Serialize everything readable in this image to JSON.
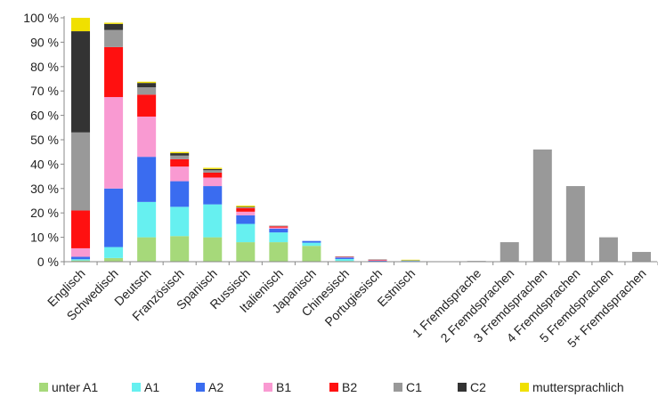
{
  "chart_data": {
    "type": "bar",
    "stacked": true,
    "ylim": [
      0,
      100
    ],
    "y_ticks": [
      "0 %",
      "10 %",
      "20 %",
      "30 %",
      "40 %",
      "50 %",
      "60 %",
      "70 %",
      "80 %",
      "90 %",
      "100 %"
    ],
    "y_tick_values": [
      0,
      10,
      20,
      30,
      40,
      50,
      60,
      70,
      80,
      90,
      100
    ],
    "grid": false,
    "legend_position": "bottom",
    "categories": [
      "Englisch",
      "Schwedisch",
      "Deutsch",
      "Französisch",
      "Spanisch",
      "Russisch",
      "Italienisch",
      "Japanisch",
      "Chinesisch",
      "Portugiesisch",
      "Estnisch",
      "",
      "1 Fremdsprache",
      "2 Fremdsprachen",
      "3 Fremdsprachen",
      "4 Fremdsprachen",
      "5 Fremdsprachen",
      "5+ Fremdsprachen"
    ],
    "series": [
      {
        "name": "unter A1",
        "color": "#a6d97a",
        "values": [
          0.5,
          1.5,
          10,
          10.5,
          10,
          8,
          8,
          6.5,
          0.3,
          0,
          0,
          0,
          0,
          0,
          0,
          0,
          0,
          0
        ]
      },
      {
        "name": "A1",
        "color": "#66f0f0",
        "values": [
          0.5,
          4.5,
          14.5,
          12,
          13.5,
          7.5,
          4,
          1.3,
          0.8,
          0.2,
          0.3,
          0,
          0,
          0,
          0,
          0,
          0,
          0
        ]
      },
      {
        "name": "A2",
        "color": "#3a6cf0",
        "values": [
          1,
          24,
          18.5,
          10.5,
          7.5,
          3.5,
          1.5,
          0.7,
          0.6,
          0.2,
          0.2,
          0,
          0,
          0,
          0,
          0,
          0,
          0
        ]
      },
      {
        "name": "B1",
        "color": "#f99ad2",
        "values": [
          3.5,
          37.5,
          16.5,
          6,
          3.5,
          1.5,
          0.5,
          0,
          0.2,
          0.2,
          0,
          0,
          0,
          0,
          0,
          0,
          0,
          0
        ]
      },
      {
        "name": "B2",
        "color": "#ff1010",
        "values": [
          15.5,
          20.5,
          9,
          3,
          2,
          1.5,
          0.5,
          0,
          0.2,
          0.2,
          0,
          0,
          0,
          0,
          0,
          0,
          0,
          0
        ]
      },
      {
        "name": "C1",
        "color": "#999999",
        "values": [
          32,
          7,
          3,
          1.5,
          1,
          0.3,
          0.3,
          0,
          0.1,
          0.2,
          0,
          0,
          0.3,
          8,
          46,
          31,
          10,
          4
        ]
      },
      {
        "name": "C2",
        "color": "#333333",
        "values": [
          41.5,
          2.5,
          1.8,
          1,
          0.5,
          0.2,
          0,
          0,
          0,
          0,
          0,
          0,
          0,
          0,
          0,
          0,
          0,
          0
        ]
      },
      {
        "name": "muttersprachlich",
        "color": "#f0e000",
        "values": [
          5.5,
          0.5,
          0.5,
          0.5,
          0.5,
          0.5,
          0,
          0,
          0,
          0,
          0.3,
          0,
          0,
          0,
          0,
          0,
          0,
          0
        ]
      }
    ]
  }
}
